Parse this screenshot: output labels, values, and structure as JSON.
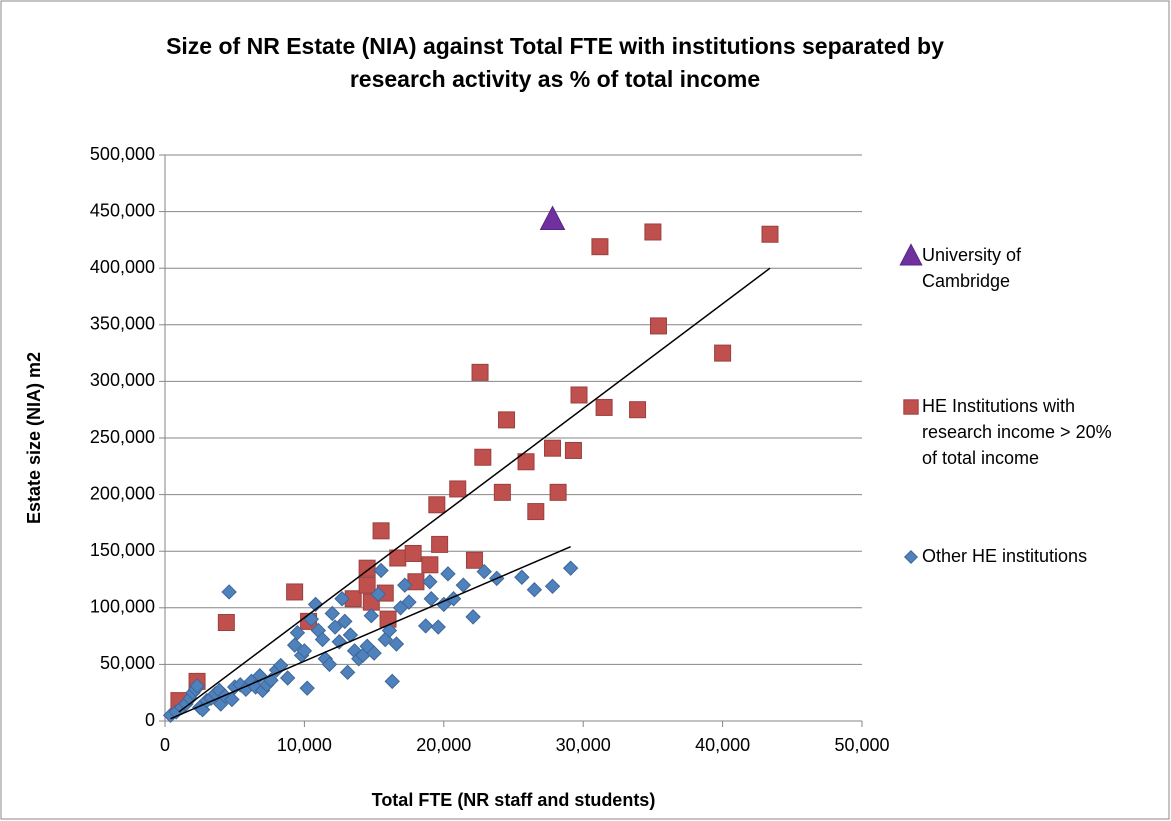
{
  "chart_data": {
    "type": "scatter",
    "title": "Size of NR Estate (NIA) against Total FTE with institutions separated by research activity as % of total income",
    "x_label": "Total FTE (NR staff and students)",
    "y_label": "Estate size (NIA) m2",
    "xlim": [
      0,
      50000
    ],
    "ylim": [
      0,
      500000
    ],
    "xticks": [
      0,
      {
        "value": 10000,
        "label": "10,000"
      },
      {
        "value": 20000,
        "label": "20,000"
      },
      {
        "value": 30000,
        "label": "30,000"
      },
      {
        "value": 40000,
        "label": "40,000"
      },
      {
        "value": 50000,
        "label": "50,000"
      }
    ],
    "yticks": [
      0,
      {
        "value": 50000,
        "label": "50,000"
      },
      {
        "value": 100000,
        "label": "100,000"
      },
      {
        "value": 150000,
        "label": "150,000"
      },
      {
        "value": 200000,
        "label": "200,000"
      },
      {
        "value": 250000,
        "label": "250,000"
      },
      {
        "value": 300000,
        "label": "300,000"
      },
      {
        "value": 350000,
        "label": "350,000"
      },
      {
        "value": 400000,
        "label": "400,000"
      },
      {
        "value": 450000,
        "label": "450,000"
      },
      {
        "value": 500000,
        "label": "500,000"
      }
    ],
    "grid": true,
    "legend": "right",
    "series": [
      {
        "name": "University of Cambridge",
        "color": "#7030a0",
        "marker": "triangle",
        "x": [
          27800
        ],
        "values": [
          443000
        ]
      },
      {
        "name": "HE Institutions with research income > 20% of total income",
        "color": "#c0504d",
        "marker": "square",
        "x": [
          1000,
          2300,
          4400,
          9300,
          10300,
          13500,
          14500,
          14500,
          14800,
          15500,
          15800,
          16000,
          16700,
          17800,
          18000,
          19000,
          19500,
          19700,
          21000,
          22200,
          22600,
          22800,
          24200,
          24500,
          25900,
          26600,
          27800,
          28200,
          29300,
          29700,
          31200,
          31500,
          33900,
          35000,
          35400,
          40000,
          43400
        ],
        "values": [
          18000,
          35000,
          87000,
          114000,
          88000,
          108000,
          135000,
          120000,
          105000,
          168000,
          113000,
          90000,
          144000,
          148000,
          123000,
          138000,
          191000,
          156000,
          205000,
          142000,
          308000,
          233000,
          202000,
          266000,
          229000,
          185000,
          241000,
          202000,
          239000,
          288000,
          419000,
          277000,
          275000,
          432000,
          349000,
          325000,
          430000
        ],
        "trend": {
          "x": [
            1000,
            43400
          ],
          "values": [
            8000,
            400000
          ]
        }
      },
      {
        "name": "Other HE institutions",
        "color": "#4f81bd",
        "marker": "diamond",
        "x": [
          400,
          800,
          1200,
          1500,
          1800,
          2000,
          2200,
          2300,
          2500,
          2700,
          3000,
          3300,
          3600,
          3900,
          4000,
          4300,
          4600,
          4800,
          5000,
          5400,
          5800,
          6200,
          6500,
          6800,
          7000,
          7300,
          7600,
          8000,
          8300,
          8800,
          9300,
          9500,
          9800,
          10000,
          10200,
          10500,
          10800,
          11000,
          11300,
          11500,
          11800,
          12000,
          12200,
          12500,
          12700,
          12900,
          13100,
          13300,
          13600,
          13900,
          14200,
          14500,
          14800,
          15000,
          15300,
          15500,
          15800,
          16100,
          16300,
          16600,
          16900,
          17200,
          17500,
          18700,
          19000,
          19100,
          19600,
          20000,
          20300,
          20700,
          21400,
          22100,
          22900,
          23800,
          25600,
          26500,
          27800,
          29100
        ],
        "values": [
          5000,
          8000,
          12000,
          15000,
          20000,
          25000,
          28000,
          31000,
          12000,
          10000,
          18000,
          20000,
          24000,
          27000,
          15000,
          22000,
          114000,
          19000,
          30000,
          32000,
          28000,
          35000,
          30000,
          40000,
          27000,
          32000,
          36000,
          45000,
          49000,
          38000,
          67000,
          78000,
          58000,
          62000,
          29000,
          90000,
          103000,
          80000,
          72000,
          55000,
          50000,
          95000,
          83000,
          70000,
          108000,
          88000,
          43000,
          76000,
          62000,
          55000,
          58000,
          66000,
          93000,
          60000,
          112000,
          133000,
          72000,
          80000,
          35000,
          68000,
          100000,
          120000,
          105000,
          84000,
          123000,
          108000,
          83000,
          103000,
          130000,
          108000,
          120000,
          92000,
          132000,
          126000,
          127000,
          116000,
          119000,
          135000
        ],
        "trend": {
          "x": [
            400,
            29100
          ],
          "values": [
            2000,
            154000
          ]
        }
      }
    ]
  }
}
